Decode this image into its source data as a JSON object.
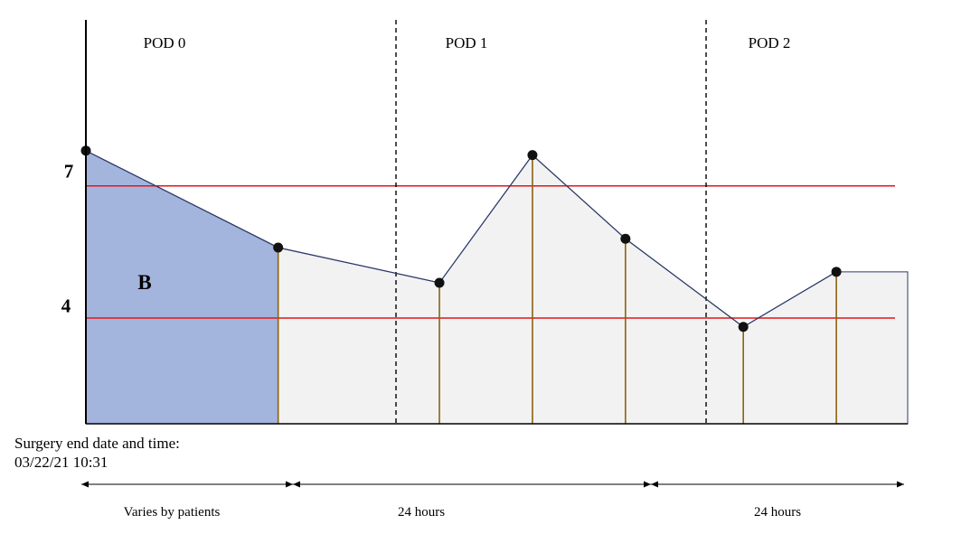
{
  "chart_data": {
    "type": "area",
    "periods": [
      {
        "label": "POD 0",
        "duration": "Varies by patients"
      },
      {
        "label": "POD 1",
        "duration": "24 hours"
      },
      {
        "label": "POD 2",
        "duration": "24 hours"
      }
    ],
    "points": [
      {
        "x": 0.0,
        "y": 7.8
      },
      {
        "x": 0.62,
        "y": 5.6
      },
      {
        "x": 1.14,
        "y": 4.8
      },
      {
        "x": 1.44,
        "y": 7.7
      },
      {
        "x": 1.74,
        "y": 5.8
      },
      {
        "x": 2.12,
        "y": 3.8
      },
      {
        "x": 2.42,
        "y": 5.05
      }
    ],
    "last_value_extends_to_x": 2.65,
    "period_boundaries": [
      1.0,
      2.0
    ],
    "reference_lines": [
      7,
      4
    ],
    "yticks": [
      7,
      4
    ],
    "ylim": [
      1.6,
      10.4
    ],
    "xlim": [
      0.0,
      2.65
    ],
    "shaded_region": {
      "label": "B",
      "x_end": 0.62
    },
    "annotation": {
      "line1": "Surgery end date and time:",
      "line2": "03/22/21 10:31"
    },
    "colors": {
      "curve": "#2b3a67",
      "point": "#111111",
      "reference": "#e0161b",
      "drop": "#8a6310",
      "area_fill": "#f2f2f2",
      "shaded_fill": "#a3b5dd"
    }
  }
}
